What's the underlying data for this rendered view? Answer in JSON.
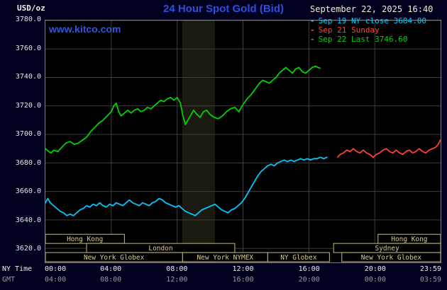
{
  "header": {
    "units_label": "USD/oz",
    "title": "24 Hour Spot Gold (Bid)",
    "datetime": "September 22, 2025 16:40",
    "watermark": "www.kitco.com",
    "legend": [
      {
        "marker": "-",
        "label": "Sep 19 NY close 3684.00",
        "color": "#00c8ff"
      },
      {
        "marker": "-",
        "label": "Sep 21 Sunday",
        "color": "#ff4133"
      },
      {
        "marker": "-",
        "label": "Sep 22 Last 3746.60",
        "color": "#00d400"
      }
    ]
  },
  "axes": {
    "ny_row_label": "NY Time",
    "gmt_row_label": "GMT",
    "y_ticks": [
      {
        "value": 3780,
        "label": "3780.0"
      },
      {
        "value": 3760,
        "label": "3760.0"
      },
      {
        "value": 3740,
        "label": "3740.0"
      },
      {
        "value": 3720,
        "label": "3720.0"
      },
      {
        "value": 3700,
        "label": "3700.0"
      },
      {
        "value": 3680,
        "label": "3680.0"
      },
      {
        "value": 3660,
        "label": "3660.0"
      },
      {
        "value": 3640,
        "label": "3640.0"
      },
      {
        "value": 3620,
        "label": "3620.0"
      }
    ],
    "x_gridline_hours": [
      4,
      8,
      12,
      16,
      20
    ],
    "ny_ticks": [
      {
        "hour": 0,
        "label": "00:00"
      },
      {
        "hour": 4,
        "label": "04:00"
      },
      {
        "hour": 8,
        "label": "08:00"
      },
      {
        "hour": 12,
        "label": "12:00"
      },
      {
        "hour": 16,
        "label": "16:00"
      },
      {
        "hour": 20,
        "label": "20:00"
      },
      {
        "hour": 24,
        "label": "23:59"
      }
    ],
    "gmt_ticks": [
      {
        "hour": 0,
        "label": "04:00"
      },
      {
        "hour": 4,
        "label": "08:00"
      },
      {
        "hour": 8,
        "label": "12:00"
      },
      {
        "hour": 12,
        "label": "16:00"
      },
      {
        "hour": 16,
        "label": "20:00"
      },
      {
        "hour": 20,
        "label": "00:00"
      },
      {
        "hour": 24,
        "label": "03:59"
      }
    ]
  },
  "plot": {
    "bg_color": "#000000",
    "grid_color": "#3e3e3e",
    "frame_color": "#808080",
    "bands": [
      {
        "start_hour": 8.3,
        "end_hour": 10.3,
        "color": "#1a1a10"
      }
    ]
  },
  "sessions": {
    "box_color": "#c9bc72",
    "text_color": "#d9cc8f",
    "rows": [
      {
        "name": "hong-kong",
        "boxes": [
          {
            "label": "Hong Kong",
            "start_hour": 0,
            "end_hour": 4.8
          },
          {
            "label": "Hong Kong",
            "start_hour": 20.2,
            "end_hour": 24
          }
        ]
      },
      {
        "name": "london-sydney",
        "boxes": [
          {
            "label": "London",
            "start_hour": 2.5,
            "end_hour": 11.5
          },
          {
            "label": "Sydney",
            "start_hour": 17.5,
            "end_hour": 24
          }
        ]
      },
      {
        "name": "new-york",
        "boxes": [
          {
            "label": "New York Globex",
            "start_hour": 0,
            "end_hour": 8.33
          },
          {
            "label": "New York NYMEX",
            "start_hour": 8.33,
            "end_hour": 13.5
          },
          {
            "label": "NY Globex",
            "start_hour": 13.5,
            "end_hour": 17.25
          },
          {
            "label": "New York Globex",
            "start_hour": 18,
            "end_hour": 24
          }
        ]
      }
    ]
  },
  "chart_data": {
    "type": "line",
    "title": "24 Hour Spot Gold (Bid)",
    "xlabel": "NY Time",
    "ylabel": "USD/oz",
    "x_range_hours": [
      0,
      24
    ],
    "ylim": [
      3620,
      3780
    ],
    "grid": true,
    "legend_position": "top-right",
    "series": [
      {
        "id": "sep19",
        "name": "Sep 19 NY close 3684.00",
        "color": "#00c8ff",
        "points": [
          [
            0,
            3652
          ],
          [
            0.15,
            3655
          ],
          [
            0.3,
            3652
          ],
          [
            0.5,
            3650
          ],
          [
            0.7,
            3648
          ],
          [
            0.9,
            3646
          ],
          [
            1.1,
            3645
          ],
          [
            1.3,
            3643
          ],
          [
            1.5,
            3644
          ],
          [
            1.7,
            3643
          ],
          [
            1.9,
            3645
          ],
          [
            2.1,
            3647
          ],
          [
            2.3,
            3648
          ],
          [
            2.5,
            3650
          ],
          [
            2.7,
            3649
          ],
          [
            2.9,
            3651
          ],
          [
            3.1,
            3650
          ],
          [
            3.3,
            3652
          ],
          [
            3.5,
            3650
          ],
          [
            3.7,
            3649
          ],
          [
            3.9,
            3651
          ],
          [
            4.1,
            3650
          ],
          [
            4.3,
            3652
          ],
          [
            4.5,
            3651
          ],
          [
            4.7,
            3650
          ],
          [
            4.9,
            3652
          ],
          [
            5.1,
            3654
          ],
          [
            5.3,
            3652
          ],
          [
            5.5,
            3651
          ],
          [
            5.7,
            3650
          ],
          [
            5.9,
            3652
          ],
          [
            6.1,
            3651
          ],
          [
            6.3,
            3650
          ],
          [
            6.5,
            3652
          ],
          [
            6.7,
            3653
          ],
          [
            6.9,
            3655
          ],
          [
            7.1,
            3654
          ],
          [
            7.3,
            3652
          ],
          [
            7.5,
            3651
          ],
          [
            7.7,
            3650
          ],
          [
            7.9,
            3649
          ],
          [
            8.1,
            3650
          ],
          [
            8.3,
            3648
          ],
          [
            8.5,
            3646
          ],
          [
            8.7,
            3645
          ],
          [
            8.9,
            3644
          ],
          [
            9.1,
            3643
          ],
          [
            9.3,
            3645
          ],
          [
            9.5,
            3647
          ],
          [
            9.7,
            3648
          ],
          [
            9.9,
            3649
          ],
          [
            10.1,
            3650
          ],
          [
            10.3,
            3651
          ],
          [
            10.5,
            3649
          ],
          [
            10.7,
            3647
          ],
          [
            10.9,
            3646
          ],
          [
            11.1,
            3645
          ],
          [
            11.3,
            3647
          ],
          [
            11.5,
            3648
          ],
          [
            11.7,
            3650
          ],
          [
            11.9,
            3652
          ],
          [
            12.1,
            3655
          ],
          [
            12.3,
            3659
          ],
          [
            12.5,
            3663
          ],
          [
            12.7,
            3667
          ],
          [
            12.9,
            3671
          ],
          [
            13.1,
            3674
          ],
          [
            13.3,
            3676
          ],
          [
            13.5,
            3678
          ],
          [
            13.7,
            3679
          ],
          [
            13.9,
            3678
          ],
          [
            14.1,
            3680
          ],
          [
            14.3,
            3681
          ],
          [
            14.5,
            3682
          ],
          [
            14.7,
            3681
          ],
          [
            14.9,
            3682
          ],
          [
            15.1,
            3681
          ],
          [
            15.3,
            3682
          ],
          [
            15.5,
            3683
          ],
          [
            15.7,
            3682
          ],
          [
            15.9,
            3683
          ],
          [
            16.1,
            3682
          ],
          [
            16.3,
            3683
          ],
          [
            16.5,
            3683
          ],
          [
            16.7,
            3684
          ],
          [
            16.9,
            3683
          ],
          [
            17.1,
            3684
          ]
        ]
      },
      {
        "id": "sep21",
        "name": "Sep 21 Sunday",
        "color": "#ff4133",
        "points": [
          [
            17.75,
            3684
          ],
          [
            17.9,
            3686
          ],
          [
            18.1,
            3687
          ],
          [
            18.3,
            3689
          ],
          [
            18.5,
            3688
          ],
          [
            18.7,
            3690
          ],
          [
            18.9,
            3688
          ],
          [
            19.1,
            3687
          ],
          [
            19.3,
            3689
          ],
          [
            19.5,
            3687
          ],
          [
            19.7,
            3686
          ],
          [
            19.9,
            3684
          ],
          [
            20.1,
            3686
          ],
          [
            20.3,
            3687
          ],
          [
            20.5,
            3689
          ],
          [
            20.7,
            3690
          ],
          [
            20.9,
            3688
          ],
          [
            21.1,
            3687
          ],
          [
            21.3,
            3689
          ],
          [
            21.5,
            3687
          ],
          [
            21.7,
            3686
          ],
          [
            21.9,
            3688
          ],
          [
            22.1,
            3689
          ],
          [
            22.3,
            3687
          ],
          [
            22.5,
            3688
          ],
          [
            22.7,
            3690
          ],
          [
            22.9,
            3688
          ],
          [
            23.1,
            3687
          ],
          [
            23.3,
            3689
          ],
          [
            23.5,
            3690
          ],
          [
            23.7,
            3691
          ],
          [
            23.85,
            3693
          ],
          [
            23.98,
            3696
          ]
        ]
      },
      {
        "id": "sep22",
        "name": "Sep 22 Last 3746.60",
        "color": "#00d400",
        "points": [
          [
            0,
            3690
          ],
          [
            0.2,
            3688
          ],
          [
            0.35,
            3687
          ],
          [
            0.5,
            3689
          ],
          [
            0.75,
            3688
          ],
          [
            1,
            3691
          ],
          [
            1.25,
            3694
          ],
          [
            1.5,
            3695
          ],
          [
            1.75,
            3693
          ],
          [
            2,
            3694
          ],
          [
            2.25,
            3696
          ],
          [
            2.5,
            3698
          ],
          [
            2.75,
            3702
          ],
          [
            3,
            3705
          ],
          [
            3.25,
            3708
          ],
          [
            3.5,
            3710
          ],
          [
            3.75,
            3713
          ],
          [
            4,
            3716
          ],
          [
            4.15,
            3720
          ],
          [
            4.3,
            3722
          ],
          [
            4.45,
            3716
          ],
          [
            4.6,
            3713
          ],
          [
            4.8,
            3715
          ],
          [
            5,
            3717
          ],
          [
            5.2,
            3715
          ],
          [
            5.4,
            3717
          ],
          [
            5.6,
            3718
          ],
          [
            5.8,
            3716
          ],
          [
            6,
            3717
          ],
          [
            6.2,
            3719
          ],
          [
            6.4,
            3718
          ],
          [
            6.6,
            3720
          ],
          [
            6.8,
            3722
          ],
          [
            7,
            3724
          ],
          [
            7.2,
            3723
          ],
          [
            7.4,
            3725
          ],
          [
            7.6,
            3726
          ],
          [
            7.8,
            3724
          ],
          [
            8,
            3726
          ],
          [
            8.2,
            3722
          ],
          [
            8.35,
            3713
          ],
          [
            8.5,
            3707
          ],
          [
            8.65,
            3710
          ],
          [
            8.8,
            3713
          ],
          [
            9,
            3717
          ],
          [
            9.2,
            3714
          ],
          [
            9.4,
            3712
          ],
          [
            9.6,
            3716
          ],
          [
            9.8,
            3717
          ],
          [
            10,
            3714
          ],
          [
            10.25,
            3712
          ],
          [
            10.5,
            3711
          ],
          [
            10.75,
            3713
          ],
          [
            11,
            3716
          ],
          [
            11.25,
            3718
          ],
          [
            11.5,
            3719
          ],
          [
            11.75,
            3716
          ],
          [
            12,
            3721
          ],
          [
            12.25,
            3725
          ],
          [
            12.5,
            3728
          ],
          [
            12.75,
            3732
          ],
          [
            13,
            3736
          ],
          [
            13.2,
            3738
          ],
          [
            13.4,
            3737
          ],
          [
            13.6,
            3736
          ],
          [
            13.8,
            3738
          ],
          [
            14,
            3740
          ],
          [
            14.2,
            3743
          ],
          [
            14.4,
            3745
          ],
          [
            14.6,
            3747
          ],
          [
            14.8,
            3745
          ],
          [
            15,
            3743
          ],
          [
            15.2,
            3746
          ],
          [
            15.4,
            3747
          ],
          [
            15.6,
            3744
          ],
          [
            15.8,
            3743
          ],
          [
            16,
            3745
          ],
          [
            16.2,
            3747
          ],
          [
            16.4,
            3748
          ],
          [
            16.55,
            3747
          ],
          [
            16.67,
            3746.6
          ]
        ]
      }
    ]
  }
}
